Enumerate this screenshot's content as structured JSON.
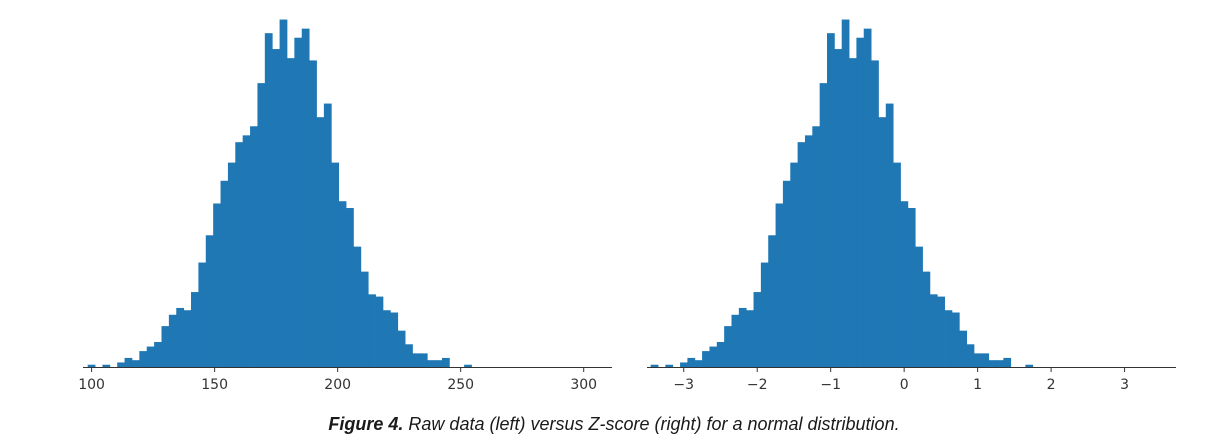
{
  "chart_data": [
    {
      "type": "histogram",
      "panel": "left",
      "title": "",
      "xlabel": "",
      "ylabel": "",
      "bar_color": "#1f77b4",
      "grid": false,
      "x_ticks": [
        100,
        150,
        200,
        250,
        300
      ],
      "x_tick_labels": [
        "100",
        "150",
        "200",
        "250",
        "300"
      ],
      "xlim": [
        96.5,
        311.5
      ],
      "bin_start": 98.4,
      "bin_width": 3.0,
      "counts": [
        1,
        0,
        1,
        0,
        2,
        4,
        3,
        7,
        9,
        11,
        18,
        23,
        26,
        25,
        33,
        46,
        58,
        72,
        82,
        90,
        99,
        102,
        106,
        125,
        147,
        140,
        153,
        136,
        145,
        149,
        135,
        110,
        116,
        90,
        73,
        70,
        53,
        42,
        32,
        31,
        25,
        24,
        16,
        10,
        6,
        6,
        3,
        3,
        4,
        0,
        0,
        1
      ],
      "count_range": [
        0,
        155
      ]
    },
    {
      "type": "histogram",
      "panel": "right",
      "title": "",
      "xlabel": "",
      "ylabel": "",
      "bar_color": "#1f77b4",
      "grid": false,
      "x_ticks": [
        -3,
        -2,
        -1,
        0,
        1,
        2,
        3
      ],
      "x_tick_labels": [
        "−3",
        "−2",
        "−1",
        "0",
        "1",
        "2",
        "3"
      ],
      "xlim": [
        -3.5,
        3.7
      ],
      "bin_start": -3.45,
      "bin_width": 0.1,
      "counts": [
        1,
        0,
        1,
        0,
        2,
        4,
        3,
        7,
        9,
        11,
        18,
        23,
        26,
        25,
        33,
        46,
        58,
        72,
        82,
        90,
        99,
        102,
        106,
        125,
        147,
        140,
        153,
        136,
        145,
        149,
        135,
        110,
        116,
        90,
        73,
        70,
        53,
        42,
        32,
        31,
        25,
        24,
        16,
        10,
        6,
        6,
        3,
        3,
        4,
        0,
        0,
        1
      ],
      "count_range": [
        0,
        155
      ]
    }
  ],
  "caption": {
    "label": "Figure 4.",
    "text": " Raw data (left) versus Z-score (right) for a normal distribution."
  }
}
